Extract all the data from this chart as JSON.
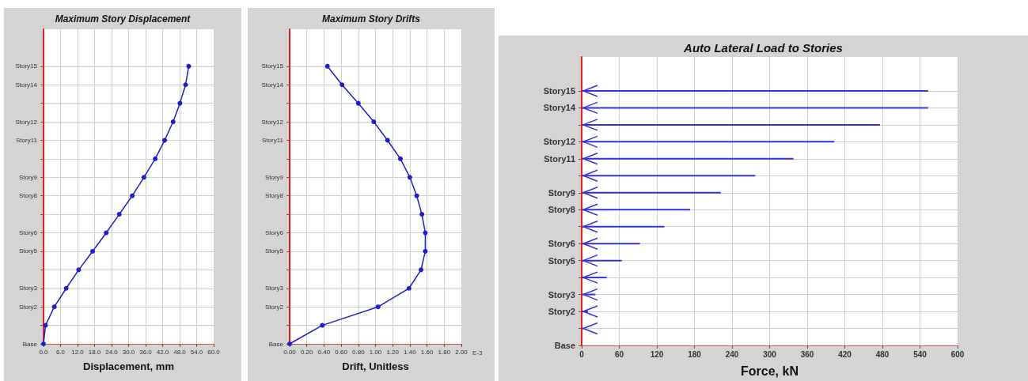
{
  "chart_data": [
    {
      "type": "line",
      "title": "Maximum Story Displacement",
      "xlabel": "Displacement, mm",
      "orientation": "horizontal",
      "categories": [
        "Story15",
        "Story14",
        null,
        "Story12",
        "Story11",
        null,
        "Story9",
        "Story8",
        null,
        "Story6",
        "Story5",
        null,
        "Story3",
        "Story2",
        null,
        "Base"
      ],
      "series": [
        {
          "color": "#1f1fc8",
          "values": [
            51.2,
            50.1,
            48.1,
            45.7,
            42.7,
            39.4,
            35.4,
            31.3,
            26.7,
            22.1,
            17.3,
            12.4,
            8.0,
            3.8,
            0.7,
            0
          ]
        }
      ],
      "xlim": [
        0,
        60
      ],
      "xticks": [
        {
          "value": 0,
          "label": "0.0"
        },
        {
          "value": 6,
          "label": "6.0"
        },
        {
          "value": 12,
          "label": "12.0"
        },
        {
          "value": 18,
          "label": "18.0"
        },
        {
          "value": 24,
          "label": "24.0"
        },
        {
          "value": 30,
          "label": "30.0"
        },
        {
          "value": 36,
          "label": "36.0"
        },
        {
          "value": 42,
          "label": "42.0"
        },
        {
          "value": 48,
          "label": "48.0"
        },
        {
          "value": 54,
          "label": "54.0"
        },
        {
          "value": 60,
          "label": "60.0"
        }
      ],
      "grid": true,
      "marker": "circle",
      "line_style": "solid"
    },
    {
      "type": "line",
      "title": "Maximum Story Drifts",
      "xlabel": "Drift, Unitless",
      "orientation": "horizontal",
      "categories": [
        "Story15",
        "Story14",
        null,
        "Story12",
        "Story11",
        null,
        "Story9",
        "Story8",
        null,
        "Story6",
        "Story5",
        null,
        "Story3",
        "Story2",
        null,
        "Base"
      ],
      "series": [
        {
          "color": "#1f1fc8",
          "values": [
            0.44,
            0.61,
            0.8,
            0.98,
            1.14,
            1.29,
            1.4,
            1.48,
            1.54,
            1.58,
            1.58,
            1.53,
            1.39,
            1.03,
            0.38,
            0
          ]
        }
      ],
      "xlim": [
        0,
        2
      ],
      "xticks": [
        {
          "value": 0,
          "label": "0.00"
        },
        {
          "value": 0.2,
          "label": "0.20"
        },
        {
          "value": 0.4,
          "label": "0.40"
        },
        {
          "value": 0.6,
          "label": "0.60"
        },
        {
          "value": 0.8,
          "label": "0.80"
        },
        {
          "value": 1,
          "label": "1.00"
        },
        {
          "value": 1.2,
          "label": "1.20"
        },
        {
          "value": 1.4,
          "label": "1.40"
        },
        {
          "value": 1.6,
          "label": "1.60"
        },
        {
          "value": 1.8,
          "label": "1.80"
        },
        {
          "value": 2,
          "label": "2.00"
        }
      ],
      "annotations": [
        "E-3"
      ],
      "grid": true,
      "marker": "circle",
      "line_style": "solid"
    },
    {
      "type": "bar",
      "title": "Auto Lateral Load to Stories",
      "xlabel": "Force, kN",
      "orientation": "horizontal",
      "categories": [
        "Story15",
        "Story14",
        null,
        "Story12",
        "Story11",
        null,
        "Story9",
        "Story8",
        null,
        "Story6",
        "Story5",
        null,
        "Story3",
        "Story2",
        null,
        "Base"
      ],
      "series": [
        {
          "color": "#3333dd",
          "values": [
            553,
            553,
            476,
            403,
            338,
            277,
            222,
            173,
            132,
            93,
            64,
            40,
            22,
            10,
            3,
            null
          ]
        }
      ],
      "xlim": [
        0,
        600
      ],
      "xticks": [
        0,
        60,
        120,
        180,
        240,
        300,
        360,
        420,
        480,
        540,
        600
      ],
      "grid": true
    }
  ]
}
